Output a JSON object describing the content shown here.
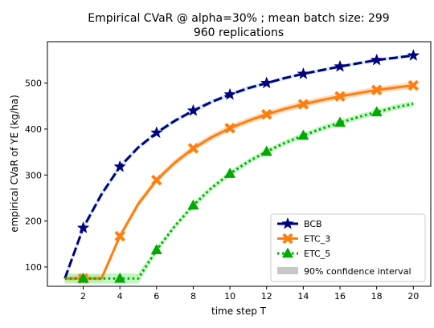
{
  "chart_data": {
    "type": "line",
    "title": "Empirical CVaR @ alpha=30% ; mean batch size: 299",
    "subtitle": "960 replications",
    "xlabel": "time step T",
    "ylabel": "empirical CVaR of YE (kg/ha)",
    "xlim": [
      0.05,
      20.95
    ],
    "ylim": [
      58,
      590
    ],
    "x_ticks": [
      2,
      4,
      6,
      8,
      10,
      12,
      14,
      16,
      18,
      20
    ],
    "y_ticks": [
      100,
      200,
      300,
      400,
      500
    ],
    "grid": false,
    "legend_position": "lower-right",
    "series": [
      {
        "name": "BCB",
        "color": "#000080",
        "band_color": "#add8e6",
        "line_style": "dashed",
        "marker": "star",
        "x": [
          1,
          2,
          3,
          4,
          5,
          6,
          7,
          8,
          9,
          10,
          11,
          12,
          13,
          14,
          15,
          16,
          17,
          18,
          19,
          20
        ],
        "y": [
          75,
          185,
          258,
          318,
          360,
          392,
          418,
          440,
          459,
          475,
          489,
          500,
          511,
          520,
          528,
          536,
          543,
          550,
          555,
          560
        ],
        "ci_lower": [
          66,
          177,
          251,
          312,
          355,
          387,
          413,
          435,
          454,
          470,
          484,
          496,
          507,
          516,
          524,
          532,
          539,
          546,
          551,
          556
        ],
        "ci_upper": [
          84,
          193,
          265,
          324,
          365,
          397,
          423,
          445,
          464,
          480,
          494,
          504,
          515,
          524,
          532,
          540,
          547,
          554,
          559,
          564
        ],
        "marker_x": [
          2,
          4,
          6,
          8,
          10,
          12,
          14,
          16,
          18,
          20
        ]
      },
      {
        "name": "ETC_3",
        "color": "#ff7f0e",
        "band_color": "#ffbb88",
        "line_style": "solid",
        "marker": "x",
        "x": [
          1,
          2,
          3,
          4,
          5,
          6,
          7,
          8,
          9,
          10,
          11,
          12,
          13,
          14,
          15,
          16,
          17,
          18,
          19,
          20
        ],
        "y": [
          75,
          75,
          75,
          167,
          237,
          289,
          327,
          358,
          382,
          402,
          418,
          432,
          444,
          454,
          463,
          471,
          478,
          485,
          490,
          495
        ],
        "ci_lower": [
          68,
          68,
          68,
          160,
          230,
          282,
          320,
          351,
          375,
          395,
          411,
          425,
          437,
          447,
          456,
          464,
          471,
          478,
          483,
          488
        ],
        "ci_upper": [
          82,
          82,
          82,
          174,
          244,
          296,
          334,
          365,
          389,
          409,
          425,
          439,
          451,
          461,
          470,
          478,
          485,
          492,
          497,
          502
        ],
        "marker_x": [
          2,
          4,
          6,
          8,
          10,
          12,
          14,
          16,
          18,
          20
        ]
      },
      {
        "name": "ETC_5",
        "color": "#00aa00",
        "band_color": "#90ee90",
        "line_style": "dotted",
        "marker": "triangle",
        "x": [
          1,
          2,
          3,
          4,
          5,
          6,
          7,
          8,
          9,
          10,
          11,
          12,
          13,
          14,
          15,
          16,
          17,
          18,
          19,
          20
        ],
        "y": [
          75,
          75,
          75,
          75,
          75,
          137,
          189,
          234,
          272,
          303,
          329,
          351,
          370,
          386,
          401,
          414,
          426,
          437,
          447,
          455
        ],
        "ci_lower": [
          64,
          64,
          64,
          64,
          64,
          131,
          183,
          228,
          266,
          297,
          323,
          345,
          364,
          380,
          395,
          408,
          420,
          431,
          441,
          449
        ],
        "ci_upper": [
          86,
          86,
          86,
          86,
          86,
          143,
          195,
          240,
          278,
          309,
          335,
          357,
          376,
          392,
          407,
          420,
          432,
          443,
          453,
          461
        ],
        "marker_x": [
          2,
          4,
          6,
          8,
          10,
          12,
          14,
          16,
          18
        ]
      }
    ],
    "legend": {
      "entries": [
        "BCB",
        "ETC_3",
        "ETC_5"
      ],
      "band_label": "90% confidence interval",
      "band_swatch_color": "#c8c8c8"
    }
  }
}
